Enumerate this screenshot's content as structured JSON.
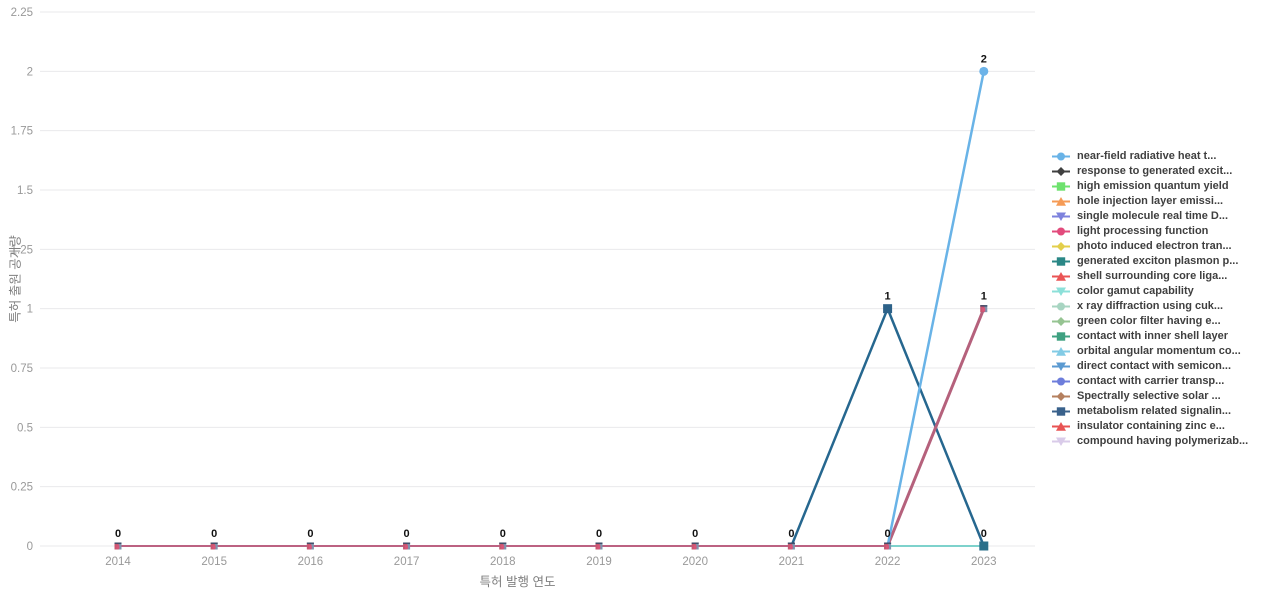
{
  "chart_data": {
    "type": "line",
    "title": "",
    "xlabel": "특허 발행 연도",
    "ylabel": "특허 출원 공개량",
    "x": [
      2014,
      2015,
      2016,
      2017,
      2018,
      2019,
      2020,
      2021,
      2022,
      2023
    ],
    "yticks": [
      0,
      0.25,
      0.5,
      0.75,
      1,
      1.25,
      1.5,
      1.75,
      2,
      2.25
    ],
    "ylim": [
      0,
      2.25
    ],
    "grid": "horizontal",
    "legend_position": "right",
    "series": [
      {
        "name": "near-field radiative heat t...",
        "color": "#69b3e7",
        "marker": "circle",
        "values": [
          0,
          0,
          0,
          0,
          0,
          0,
          0,
          0,
          0,
          2
        ]
      },
      {
        "name": "response to generated excit...",
        "color": "#404040",
        "marker": "diamond",
        "values": [
          0,
          0,
          0,
          0,
          0,
          0,
          0,
          0,
          0,
          0
        ]
      },
      {
        "name": "high emission quantum yield",
        "color": "#6ee26e",
        "marker": "square",
        "values": [
          0,
          0,
          0,
          0,
          0,
          0,
          0,
          0,
          0,
          0
        ]
      },
      {
        "name": "hole injection layer emissi...",
        "color": "#f59b56",
        "marker": "triangle-up",
        "values": [
          0,
          0,
          0,
          0,
          0,
          0,
          0,
          0,
          0,
          0
        ]
      },
      {
        "name": "single molecule real time D...",
        "color": "#7d82dd",
        "marker": "triangle-down",
        "values": [
          0,
          0,
          0,
          0,
          0,
          0,
          0,
          0,
          0,
          0
        ]
      },
      {
        "name": "light processing function",
        "color": "#e24b7c",
        "marker": "circle",
        "values": [
          0,
          0,
          0,
          0,
          0,
          0,
          0,
          0,
          0,
          0
        ]
      },
      {
        "name": "photo induced electron tran...",
        "color": "#e3cf4b",
        "marker": "diamond",
        "values": [
          0,
          0,
          0,
          0,
          0,
          0,
          0,
          0,
          0,
          0
        ]
      },
      {
        "name": "generated exciton plasmon p...",
        "color": "#2a8786",
        "marker": "square",
        "values": [
          0,
          0,
          0,
          0,
          0,
          0,
          0,
          0,
          0,
          0
        ]
      },
      {
        "name": "shell surrounding core liga...",
        "color": "#ea5455",
        "marker": "triangle-up",
        "values": [
          0,
          0,
          0,
          0,
          0,
          0,
          0,
          0,
          0,
          0
        ]
      },
      {
        "name": "color gamut capability",
        "color": "#8ce0d9",
        "marker": "triangle-down",
        "values": [
          0,
          0,
          0,
          0,
          0,
          0,
          0,
          0,
          0,
          0
        ]
      },
      {
        "name": "x ray diffraction using cuk...",
        "color": "#a8d5c2",
        "marker": "circle",
        "values": [
          0,
          0,
          0,
          0,
          0,
          0,
          0,
          0,
          0,
          0
        ]
      },
      {
        "name": "green color filter having e...",
        "color": "#96c492",
        "marker": "diamond",
        "values": [
          0,
          0,
          0,
          0,
          0,
          0,
          0,
          0,
          0,
          0
        ]
      },
      {
        "name": "contact with inner shell layer",
        "color": "#3fa181",
        "marker": "square",
        "values": [
          0,
          0,
          0,
          0,
          0,
          0,
          0,
          0,
          0,
          0
        ]
      },
      {
        "name": "orbital angular momentum co...",
        "color": "#82cbe5",
        "marker": "triangle-up",
        "values": [
          0,
          0,
          0,
          0,
          0,
          0,
          0,
          0,
          0,
          0
        ]
      },
      {
        "name": "direct contact with semicon...",
        "color": "#5b9ad1",
        "marker": "triangle-down",
        "values": [
          0,
          0,
          0,
          0,
          0,
          0,
          0,
          0,
          0,
          0
        ]
      },
      {
        "name": "contact with carrier transp...",
        "color": "#6d7ddb",
        "marker": "circle",
        "values": [
          0,
          0,
          0,
          0,
          0,
          0,
          0,
          0,
          0,
          0
        ]
      },
      {
        "name": "Spectrally selective solar ...",
        "color": "#b5805f",
        "marker": "diamond",
        "values": [
          0,
          0,
          0,
          0,
          0,
          0,
          0,
          0,
          0,
          0
        ]
      },
      {
        "name": "metabolism related signalin...",
        "color": "#39618b",
        "marker": "square",
        "values": [
          0,
          0,
          0,
          0,
          0,
          0,
          0,
          0,
          1,
          0
        ]
      },
      {
        "name": "insulator containing zinc e...",
        "color": "#e85353",
        "marker": "triangle-up",
        "values": [
          0,
          0,
          0,
          0,
          0,
          0,
          0,
          0,
          0,
          1
        ]
      },
      {
        "name": "compound having polymerizab...",
        "color": "#d9cbe9",
        "marker": "triangle-down",
        "values": [
          0,
          0,
          0,
          0,
          0,
          0,
          0,
          0,
          0,
          1
        ]
      }
    ],
    "visible_line_layers": [
      {
        "name": "baseline-2014-2022",
        "color": "#bc6282",
        "width": 2,
        "points": [
          [
            2014,
            0
          ],
          [
            2022,
            0
          ]
        ]
      },
      {
        "name": "baseline-2022-2023",
        "color": "#7ed2cc",
        "width": 2,
        "points": [
          [
            2022,
            0
          ],
          [
            2023,
            0
          ]
        ]
      },
      {
        "name": "metabolism-peak",
        "color": "#26678f",
        "width": 2.5,
        "points": [
          [
            2021,
            0
          ],
          [
            2022,
            1
          ],
          [
            2023,
            0
          ]
        ]
      },
      {
        "name": "rose-rise",
        "color": "#b5617c",
        "width": 3,
        "points": [
          [
            2022,
            0
          ],
          [
            2023,
            1
          ]
        ]
      },
      {
        "name": "near-field-rise",
        "color": "#69b3e7",
        "width": 2.5,
        "points": [
          [
            2022,
            0
          ],
          [
            2023,
            2
          ]
        ]
      }
    ],
    "baseline_cluster_years": [
      2014,
      2015,
      2016,
      2017,
      2018,
      2019,
      2020,
      2021,
      2022
    ],
    "cluster_colors": {
      "base": "#7e93ad",
      "overlay": "#c9566f",
      "edge": "#3a4a66",
      "core": "#d8577a"
    },
    "visible_markers": [
      {
        "x": 2022,
        "y": 1,
        "type": "square",
        "color": "#2d6289"
      },
      {
        "x": 2023,
        "y": 0,
        "type": "square",
        "color": "#2a6f8a"
      },
      {
        "x": 2023,
        "y": 1,
        "type": "cluster",
        "color": "#c9566f"
      },
      {
        "x": 2023,
        "y": 2,
        "type": "circle",
        "color": "#6cb3e8"
      }
    ],
    "value_label_color": "#111111",
    "tick_label_color": "#999999",
    "grid_color": "#e9e9eb"
  }
}
